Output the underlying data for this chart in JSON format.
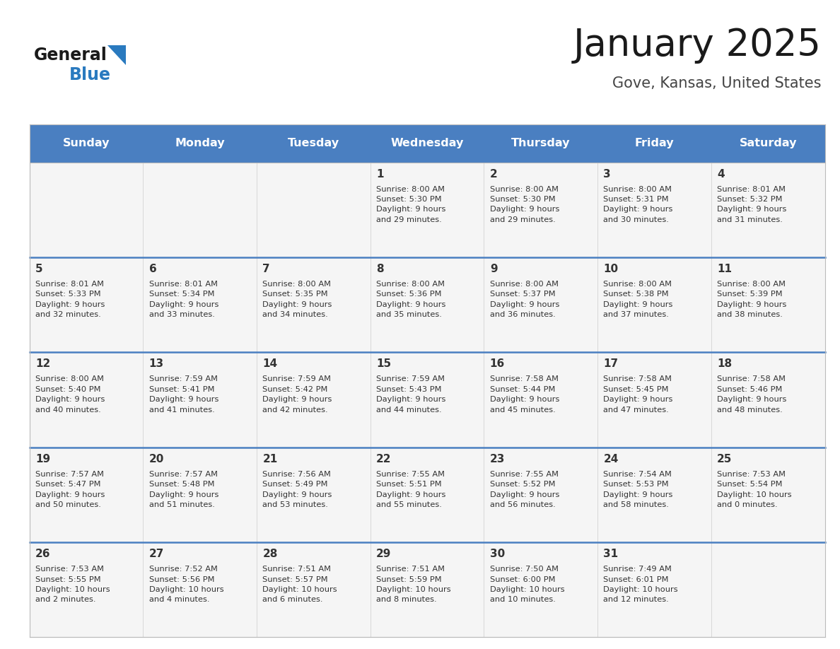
{
  "title": "January 2025",
  "subtitle": "Gove, Kansas, United States",
  "header_color": "#4a7fc1",
  "header_text_color": "#ffffff",
  "cell_bg": "#f5f5f5",
  "cell_border_color": "#cccccc",
  "week_separator_color": "#4a7fc1",
  "text_color": "#333333",
  "logo_general_color": "#1a1a1a",
  "logo_blue_color": "#2a7abf",
  "logo_triangle_color": "#2a7abf",
  "title_color": "#1a1a1a",
  "subtitle_color": "#444444",
  "days_of_week": [
    "Sunday",
    "Monday",
    "Tuesday",
    "Wednesday",
    "Thursday",
    "Friday",
    "Saturday"
  ],
  "weeks": [
    [
      {
        "day": "",
        "info": ""
      },
      {
        "day": "",
        "info": ""
      },
      {
        "day": "",
        "info": ""
      },
      {
        "day": "1",
        "info": "Sunrise: 8:00 AM\nSunset: 5:30 PM\nDaylight: 9 hours\nand 29 minutes."
      },
      {
        "day": "2",
        "info": "Sunrise: 8:00 AM\nSunset: 5:30 PM\nDaylight: 9 hours\nand 29 minutes."
      },
      {
        "day": "3",
        "info": "Sunrise: 8:00 AM\nSunset: 5:31 PM\nDaylight: 9 hours\nand 30 minutes."
      },
      {
        "day": "4",
        "info": "Sunrise: 8:01 AM\nSunset: 5:32 PM\nDaylight: 9 hours\nand 31 minutes."
      }
    ],
    [
      {
        "day": "5",
        "info": "Sunrise: 8:01 AM\nSunset: 5:33 PM\nDaylight: 9 hours\nand 32 minutes."
      },
      {
        "day": "6",
        "info": "Sunrise: 8:01 AM\nSunset: 5:34 PM\nDaylight: 9 hours\nand 33 minutes."
      },
      {
        "day": "7",
        "info": "Sunrise: 8:00 AM\nSunset: 5:35 PM\nDaylight: 9 hours\nand 34 minutes."
      },
      {
        "day": "8",
        "info": "Sunrise: 8:00 AM\nSunset: 5:36 PM\nDaylight: 9 hours\nand 35 minutes."
      },
      {
        "day": "9",
        "info": "Sunrise: 8:00 AM\nSunset: 5:37 PM\nDaylight: 9 hours\nand 36 minutes."
      },
      {
        "day": "10",
        "info": "Sunrise: 8:00 AM\nSunset: 5:38 PM\nDaylight: 9 hours\nand 37 minutes."
      },
      {
        "day": "11",
        "info": "Sunrise: 8:00 AM\nSunset: 5:39 PM\nDaylight: 9 hours\nand 38 minutes."
      }
    ],
    [
      {
        "day": "12",
        "info": "Sunrise: 8:00 AM\nSunset: 5:40 PM\nDaylight: 9 hours\nand 40 minutes."
      },
      {
        "day": "13",
        "info": "Sunrise: 7:59 AM\nSunset: 5:41 PM\nDaylight: 9 hours\nand 41 minutes."
      },
      {
        "day": "14",
        "info": "Sunrise: 7:59 AM\nSunset: 5:42 PM\nDaylight: 9 hours\nand 42 minutes."
      },
      {
        "day": "15",
        "info": "Sunrise: 7:59 AM\nSunset: 5:43 PM\nDaylight: 9 hours\nand 44 minutes."
      },
      {
        "day": "16",
        "info": "Sunrise: 7:58 AM\nSunset: 5:44 PM\nDaylight: 9 hours\nand 45 minutes."
      },
      {
        "day": "17",
        "info": "Sunrise: 7:58 AM\nSunset: 5:45 PM\nDaylight: 9 hours\nand 47 minutes."
      },
      {
        "day": "18",
        "info": "Sunrise: 7:58 AM\nSunset: 5:46 PM\nDaylight: 9 hours\nand 48 minutes."
      }
    ],
    [
      {
        "day": "19",
        "info": "Sunrise: 7:57 AM\nSunset: 5:47 PM\nDaylight: 9 hours\nand 50 minutes."
      },
      {
        "day": "20",
        "info": "Sunrise: 7:57 AM\nSunset: 5:48 PM\nDaylight: 9 hours\nand 51 minutes."
      },
      {
        "day": "21",
        "info": "Sunrise: 7:56 AM\nSunset: 5:49 PM\nDaylight: 9 hours\nand 53 minutes."
      },
      {
        "day": "22",
        "info": "Sunrise: 7:55 AM\nSunset: 5:51 PM\nDaylight: 9 hours\nand 55 minutes."
      },
      {
        "day": "23",
        "info": "Sunrise: 7:55 AM\nSunset: 5:52 PM\nDaylight: 9 hours\nand 56 minutes."
      },
      {
        "day": "24",
        "info": "Sunrise: 7:54 AM\nSunset: 5:53 PM\nDaylight: 9 hours\nand 58 minutes."
      },
      {
        "day": "25",
        "info": "Sunrise: 7:53 AM\nSunset: 5:54 PM\nDaylight: 10 hours\nand 0 minutes."
      }
    ],
    [
      {
        "day": "26",
        "info": "Sunrise: 7:53 AM\nSunset: 5:55 PM\nDaylight: 10 hours\nand 2 minutes."
      },
      {
        "day": "27",
        "info": "Sunrise: 7:52 AM\nSunset: 5:56 PM\nDaylight: 10 hours\nand 4 minutes."
      },
      {
        "day": "28",
        "info": "Sunrise: 7:51 AM\nSunset: 5:57 PM\nDaylight: 10 hours\nand 6 minutes."
      },
      {
        "day": "29",
        "info": "Sunrise: 7:51 AM\nSunset: 5:59 PM\nDaylight: 10 hours\nand 8 minutes."
      },
      {
        "day": "30",
        "info": "Sunrise: 7:50 AM\nSunset: 6:00 PM\nDaylight: 10 hours\nand 10 minutes."
      },
      {
        "day": "31",
        "info": "Sunrise: 7:49 AM\nSunset: 6:01 PM\nDaylight: 10 hours\nand 12 minutes."
      },
      {
        "day": "",
        "info": ""
      }
    ]
  ],
  "figsize": [
    11.88,
    9.18
  ],
  "dpi": 100
}
